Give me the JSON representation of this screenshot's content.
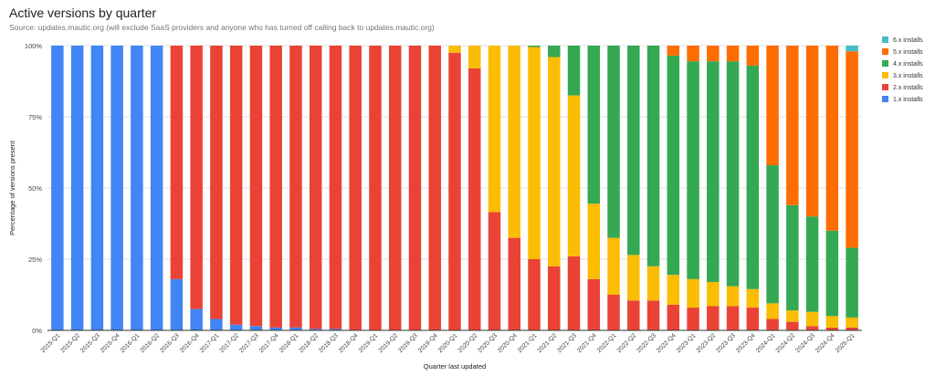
{
  "chart_data": {
    "type": "bar",
    "stacked": true,
    "normalized": true,
    "title": "Active versions by quarter",
    "subtitle": "Source: updates.mautic.org (will exclude SaaS providers and anyone who has turned off calling back to updates.mautic.org)",
    "xlabel": "Quarter last updated",
    "ylabel": "Percentage of versions present",
    "ylim": [
      0,
      100
    ],
    "yticks": [
      "0%",
      "25%",
      "50%",
      "75%",
      "100%"
    ],
    "grid": true,
    "legend_position": "right",
    "categories": [
      "2015-Q1",
      "2015-Q2",
      "2015-Q3",
      "2015-Q4",
      "2016-Q1",
      "2016-Q2",
      "2016-Q3",
      "2016-Q4",
      "2017-Q1",
      "2017-Q2",
      "2017-Q3",
      "2017-Q4",
      "2018-Q1",
      "2018-Q2",
      "2018-Q3",
      "2018-Q4",
      "2019-Q1",
      "2019-Q2",
      "2019-Q3",
      "2019-Q4",
      "2020-Q1",
      "2020-Q2",
      "2020-Q3",
      "2020-Q4",
      "2021-Q1",
      "2021-Q2",
      "2021-Q3",
      "2021-Q4",
      "2022-Q1",
      "2022-Q2",
      "2022-Q3",
      "2022-Q4",
      "2023-Q1",
      "2023-Q2",
      "2023-Q3",
      "2023-Q4",
      "2024-Q1",
      "2024-Q2",
      "2024-Q3",
      "2024-Q4",
      "2025-Q1"
    ],
    "series": [
      {
        "name": "1.x installs",
        "color": "#4285F4",
        "values": [
          100,
          100,
          100,
          100,
          100,
          100,
          18,
          7.5,
          4,
          2,
          1.5,
          1,
          1,
          0.5,
          0.5,
          0,
          0,
          0,
          0,
          0,
          0,
          0,
          0,
          0,
          0,
          0,
          0,
          0,
          0,
          0,
          0,
          0,
          0,
          0,
          0,
          0,
          0,
          0,
          0,
          0,
          0
        ]
      },
      {
        "name": "2.x installs",
        "color": "#EA4335",
        "values": [
          0,
          0,
          0,
          0,
          0,
          0,
          82,
          92.5,
          96,
          98,
          98.5,
          99,
          99,
          99.5,
          99.5,
          100,
          100,
          100,
          100,
          100,
          97.5,
          92,
          41.5,
          32.5,
          25,
          22.5,
          26,
          18,
          12.5,
          10.5,
          10.5,
          9,
          8,
          8.5,
          8.5,
          8,
          4,
          3,
          1.5,
          1,
          1
        ]
      },
      {
        "name": "3.x installs",
        "color": "#FBBC04",
        "values": [
          0,
          0,
          0,
          0,
          0,
          0,
          0,
          0,
          0,
          0,
          0,
          0,
          0,
          0,
          0,
          0,
          0,
          0,
          0,
          0,
          2.5,
          8,
          58.5,
          67.5,
          74.5,
          73.5,
          56.5,
          26.5,
          20,
          16,
          12,
          10.5,
          10,
          8.5,
          7,
          6.5,
          5.5,
          4,
          5,
          4,
          3.5
        ]
      },
      {
        "name": "4.x installs",
        "color": "#34A853",
        "values": [
          0,
          0,
          0,
          0,
          0,
          0,
          0,
          0,
          0,
          0,
          0,
          0,
          0,
          0,
          0,
          0,
          0,
          0,
          0,
          0,
          0,
          0,
          0,
          0,
          0.5,
          4,
          17.5,
          55.5,
          67.5,
          73.5,
          77.5,
          77,
          76.5,
          77.5,
          79,
          78.5,
          48.5,
          37,
          33.5,
          30,
          24.5
        ]
      },
      {
        "name": "5.x installs",
        "color": "#FF6D01",
        "values": [
          0,
          0,
          0,
          0,
          0,
          0,
          0,
          0,
          0,
          0,
          0,
          0,
          0,
          0,
          0,
          0,
          0,
          0,
          0,
          0,
          0,
          0,
          0,
          0,
          0,
          0,
          0,
          0,
          0,
          0,
          0,
          3.5,
          5.5,
          5.5,
          5.5,
          7,
          42,
          56,
          60,
          65,
          69
        ]
      },
      {
        "name": "6.x installs",
        "color": "#46BDC6",
        "values": [
          0,
          0,
          0,
          0,
          0,
          0,
          0,
          0,
          0,
          0,
          0,
          0,
          0,
          0,
          0,
          0,
          0,
          0,
          0,
          0,
          0,
          0,
          0,
          0,
          0,
          0,
          0,
          0,
          0,
          0,
          0,
          0,
          0,
          0,
          0,
          0,
          0,
          0,
          0,
          0,
          2
        ]
      }
    ],
    "legend_order": [
      "6.x installs",
      "5.x installs",
      "4.x installs",
      "3.x installs",
      "2.x installs",
      "1.x installs"
    ]
  }
}
